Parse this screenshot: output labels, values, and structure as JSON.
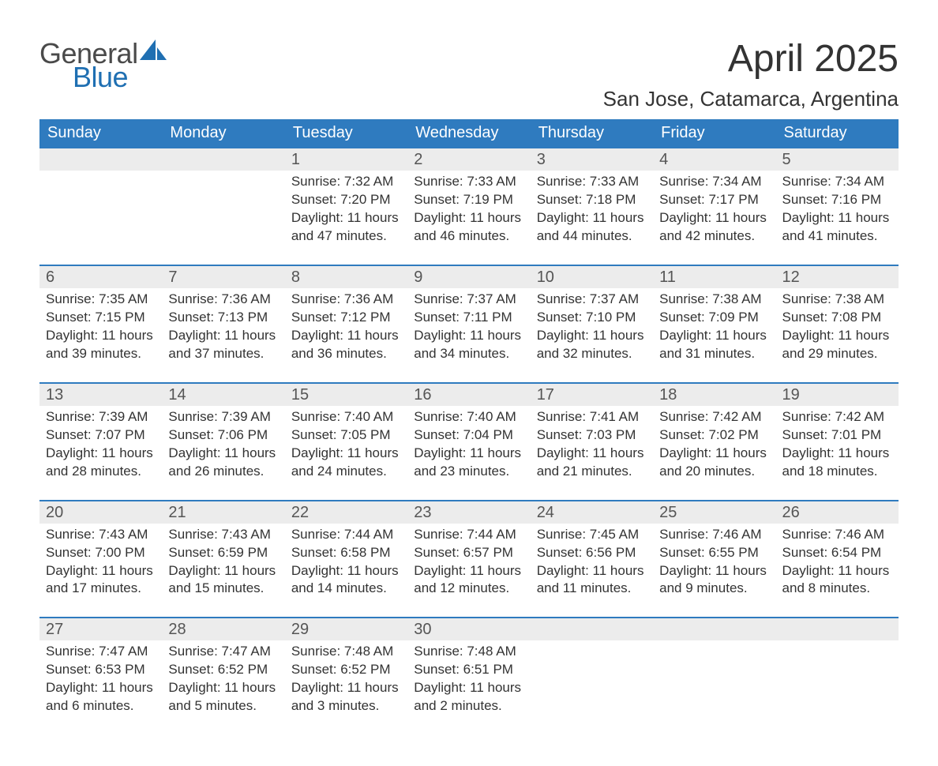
{
  "brand": {
    "word1": "General",
    "word2": "Blue",
    "word1_color": "#4a4a4a",
    "word2_color": "#1f6fb2",
    "sail_color": "#1f6fb2"
  },
  "title": "April 2025",
  "location": "San Jose, Catamarca, Argentina",
  "colors": {
    "header_bg": "#2f7bbf",
    "header_text": "#ffffff",
    "daynum_bg": "#ececec",
    "daynum_border": "#2f7bbf",
    "text": "#333333",
    "page_bg": "#ffffff"
  },
  "typography": {
    "title_fontsize": 48,
    "location_fontsize": 26,
    "header_cell_fontsize": 20,
    "daynum_fontsize": 20,
    "body_fontsize": 17
  },
  "weekdays": [
    "Sunday",
    "Monday",
    "Tuesday",
    "Wednesday",
    "Thursday",
    "Friday",
    "Saturday"
  ],
  "calendar": {
    "type": "table",
    "columns": 7,
    "first_weekday_index": 2,
    "days": [
      {
        "n": 1,
        "sunrise": "7:32 AM",
        "sunset": "7:20 PM",
        "daylight": "11 hours and 47 minutes."
      },
      {
        "n": 2,
        "sunrise": "7:33 AM",
        "sunset": "7:19 PM",
        "daylight": "11 hours and 46 minutes."
      },
      {
        "n": 3,
        "sunrise": "7:33 AM",
        "sunset": "7:18 PM",
        "daylight": "11 hours and 44 minutes."
      },
      {
        "n": 4,
        "sunrise": "7:34 AM",
        "sunset": "7:17 PM",
        "daylight": "11 hours and 42 minutes."
      },
      {
        "n": 5,
        "sunrise": "7:34 AM",
        "sunset": "7:16 PM",
        "daylight": "11 hours and 41 minutes."
      },
      {
        "n": 6,
        "sunrise": "7:35 AM",
        "sunset": "7:15 PM",
        "daylight": "11 hours and 39 minutes."
      },
      {
        "n": 7,
        "sunrise": "7:36 AM",
        "sunset": "7:13 PM",
        "daylight": "11 hours and 37 minutes."
      },
      {
        "n": 8,
        "sunrise": "7:36 AM",
        "sunset": "7:12 PM",
        "daylight": "11 hours and 36 minutes."
      },
      {
        "n": 9,
        "sunrise": "7:37 AM",
        "sunset": "7:11 PM",
        "daylight": "11 hours and 34 minutes."
      },
      {
        "n": 10,
        "sunrise": "7:37 AM",
        "sunset": "7:10 PM",
        "daylight": "11 hours and 32 minutes."
      },
      {
        "n": 11,
        "sunrise": "7:38 AM",
        "sunset": "7:09 PM",
        "daylight": "11 hours and 31 minutes."
      },
      {
        "n": 12,
        "sunrise": "7:38 AM",
        "sunset": "7:08 PM",
        "daylight": "11 hours and 29 minutes."
      },
      {
        "n": 13,
        "sunrise": "7:39 AM",
        "sunset": "7:07 PM",
        "daylight": "11 hours and 28 minutes."
      },
      {
        "n": 14,
        "sunrise": "7:39 AM",
        "sunset": "7:06 PM",
        "daylight": "11 hours and 26 minutes."
      },
      {
        "n": 15,
        "sunrise": "7:40 AM",
        "sunset": "7:05 PM",
        "daylight": "11 hours and 24 minutes."
      },
      {
        "n": 16,
        "sunrise": "7:40 AM",
        "sunset": "7:04 PM",
        "daylight": "11 hours and 23 minutes."
      },
      {
        "n": 17,
        "sunrise": "7:41 AM",
        "sunset": "7:03 PM",
        "daylight": "11 hours and 21 minutes."
      },
      {
        "n": 18,
        "sunrise": "7:42 AM",
        "sunset": "7:02 PM",
        "daylight": "11 hours and 20 minutes."
      },
      {
        "n": 19,
        "sunrise": "7:42 AM",
        "sunset": "7:01 PM",
        "daylight": "11 hours and 18 minutes."
      },
      {
        "n": 20,
        "sunrise": "7:43 AM",
        "sunset": "7:00 PM",
        "daylight": "11 hours and 17 minutes."
      },
      {
        "n": 21,
        "sunrise": "7:43 AM",
        "sunset": "6:59 PM",
        "daylight": "11 hours and 15 minutes."
      },
      {
        "n": 22,
        "sunrise": "7:44 AM",
        "sunset": "6:58 PM",
        "daylight": "11 hours and 14 minutes."
      },
      {
        "n": 23,
        "sunrise": "7:44 AM",
        "sunset": "6:57 PM",
        "daylight": "11 hours and 12 minutes."
      },
      {
        "n": 24,
        "sunrise": "7:45 AM",
        "sunset": "6:56 PM",
        "daylight": "11 hours and 11 minutes."
      },
      {
        "n": 25,
        "sunrise": "7:46 AM",
        "sunset": "6:55 PM",
        "daylight": "11 hours and 9 minutes."
      },
      {
        "n": 26,
        "sunrise": "7:46 AM",
        "sunset": "6:54 PM",
        "daylight": "11 hours and 8 minutes."
      },
      {
        "n": 27,
        "sunrise": "7:47 AM",
        "sunset": "6:53 PM",
        "daylight": "11 hours and 6 minutes."
      },
      {
        "n": 28,
        "sunrise": "7:47 AM",
        "sunset": "6:52 PM",
        "daylight": "11 hours and 5 minutes."
      },
      {
        "n": 29,
        "sunrise": "7:48 AM",
        "sunset": "6:52 PM",
        "daylight": "11 hours and 3 minutes."
      },
      {
        "n": 30,
        "sunrise": "7:48 AM",
        "sunset": "6:51 PM",
        "daylight": "11 hours and 2 minutes."
      }
    ]
  },
  "labels": {
    "sunrise": "Sunrise:",
    "sunset": "Sunset:",
    "daylight": "Daylight:"
  }
}
